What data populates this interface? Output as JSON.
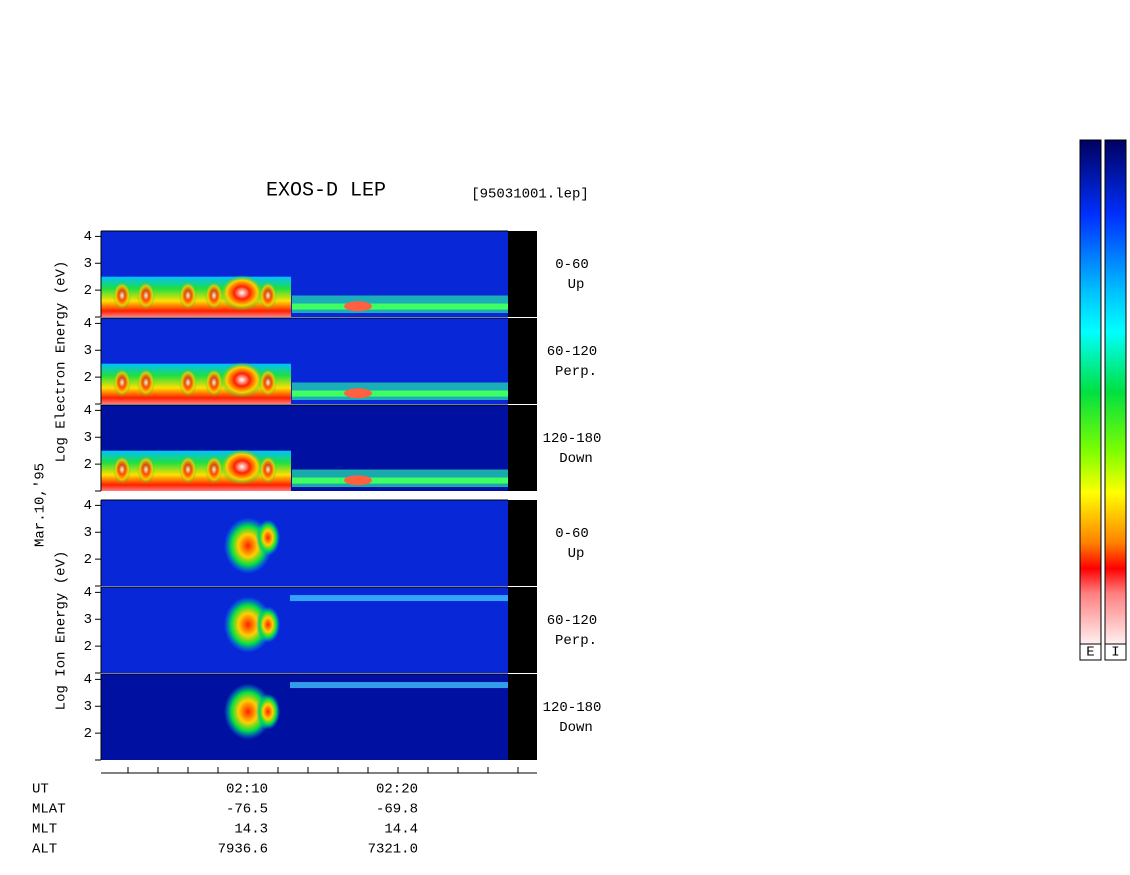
{
  "chart_data": {
    "type": "spectrogram",
    "title": "EXOS-D LEP",
    "file_label": "[95031001.lep]",
    "date_label": "Mar.10,'95",
    "ylim": [
      1,
      4.2
    ],
    "yticks": [
      1,
      2,
      3,
      4
    ],
    "ytick_labels": [
      null,
      "2",
      "3",
      "4"
    ],
    "groups": [
      {
        "ylabel": "Log  Electron  Energy (eV)",
        "panels": [
          {
            "range": "0-60",
            "direction": "Up"
          },
          {
            "range": "60-120",
            "direction": "Perp."
          },
          {
            "range": "120-180",
            "direction": "Down"
          }
        ]
      },
      {
        "ylabel": "Log  Ion  Energy (eV)",
        "panels": [
          {
            "range": "0-60",
            "direction": "Up"
          },
          {
            "range": "60-120",
            "direction": "Perp."
          },
          {
            "range": "120-180",
            "direction": "Down"
          }
        ]
      }
    ],
    "orbit_rows": [
      {
        "name": "UT",
        "values": [
          "02:10",
          "02:20"
        ]
      },
      {
        "name": "MLAT",
        "values": [
          "-76.5",
          "-69.8"
        ]
      },
      {
        "name": "MLT",
        "values": [
          "14.3",
          "14.4"
        ]
      },
      {
        "name": "ALT",
        "values": [
          "7936.6",
          "7321.0"
        ]
      }
    ],
    "colorbars": [
      "E",
      "I"
    ]
  }
}
